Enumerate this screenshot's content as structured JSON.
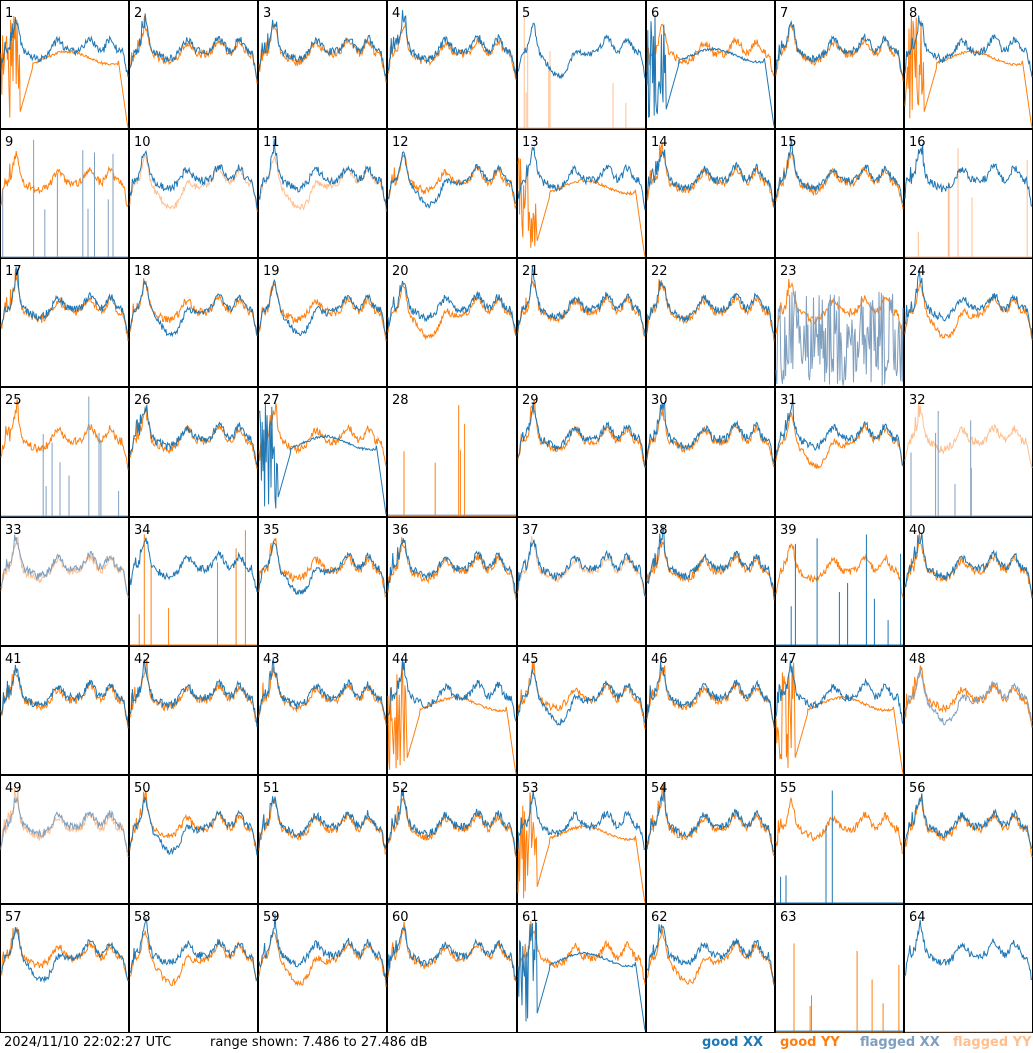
{
  "footer": {
    "timestamp": "2024/11/10 22:02:27 UTC",
    "range": "range shown: 7.486 to 27.486 dB",
    "legend": [
      {
        "label": "good XX",
        "color": "#1f77b4"
      },
      {
        "label": "good YY",
        "color": "#ff7f0e"
      },
      {
        "label": "flagged XX",
        "color": "#7f9fbf"
      },
      {
        "label": "flagged YY",
        "color": "#ffbf8f"
      }
    ]
  },
  "chart_data": {
    "type": "line",
    "grid": {
      "rows": 8,
      "cols": 8
    },
    "ylim": [
      7.486,
      27.486
    ],
    "yunit": "dB",
    "panels": [
      {
        "id": "1",
        "xx": "good",
        "yy": "good",
        "xx_shape": "normal",
        "yy_shape": "rolloff"
      },
      {
        "id": "2",
        "xx": "good",
        "yy": "good",
        "xx_shape": "normal",
        "yy_shape": "normal"
      },
      {
        "id": "3",
        "xx": "good",
        "yy": "good",
        "xx_shape": "normal",
        "yy_shape": "normal"
      },
      {
        "id": "4",
        "xx": "good",
        "yy": "good",
        "xx_shape": "normal",
        "yy_shape": "normal"
      },
      {
        "id": "5",
        "xx": "good",
        "yy": "flagged",
        "xx_shape": "dip",
        "yy_shape": "spikes"
      },
      {
        "id": "6",
        "xx": "good",
        "yy": "good",
        "xx_shape": "rolloff",
        "yy_shape": "normal"
      },
      {
        "id": "7",
        "xx": "good",
        "yy": "good",
        "xx_shape": "normal",
        "yy_shape": "normal"
      },
      {
        "id": "8",
        "xx": "good",
        "yy": "good",
        "xx_shape": "normal",
        "yy_shape": "rolloff"
      },
      {
        "id": "9",
        "xx": "flagged",
        "yy": "good",
        "xx_shape": "spikes",
        "yy_shape": "normal"
      },
      {
        "id": "10",
        "xx": "good",
        "yy": "flagged",
        "xx_shape": "normal",
        "yy_shape": "dip"
      },
      {
        "id": "11",
        "xx": "good",
        "yy": "flagged",
        "xx_shape": "normal",
        "yy_shape": "dip"
      },
      {
        "id": "12",
        "xx": "good",
        "yy": "good",
        "xx_shape": "dip",
        "yy_shape": "normal"
      },
      {
        "id": "13",
        "xx": "good",
        "yy": "good",
        "xx_shape": "normal",
        "yy_shape": "rolloff"
      },
      {
        "id": "14",
        "xx": "good",
        "yy": "good",
        "xx_shape": "normal",
        "yy_shape": "normal"
      },
      {
        "id": "15",
        "xx": "good",
        "yy": "good",
        "xx_shape": "normal",
        "yy_shape": "normal"
      },
      {
        "id": "16",
        "xx": "good",
        "yy": "flagged",
        "xx_shape": "normal",
        "yy_shape": "spikes"
      },
      {
        "id": "17",
        "xx": "good",
        "yy": "good",
        "xx_shape": "normal",
        "yy_shape": "normal"
      },
      {
        "id": "18",
        "xx": "good",
        "yy": "good",
        "xx_shape": "dip",
        "yy_shape": "normal"
      },
      {
        "id": "19",
        "xx": "good",
        "yy": "good",
        "xx_shape": "dip",
        "yy_shape": "normal"
      },
      {
        "id": "20",
        "xx": "good",
        "yy": "good",
        "xx_shape": "normal",
        "yy_shape": "dip"
      },
      {
        "id": "21",
        "xx": "good",
        "yy": "good",
        "xx_shape": "normal",
        "yy_shape": "normal"
      },
      {
        "id": "22",
        "xx": "good",
        "yy": "good",
        "xx_shape": "normal",
        "yy_shape": "normal"
      },
      {
        "id": "23",
        "xx": "flagged",
        "yy": "good",
        "xx_shape": "noise",
        "yy_shape": "normal"
      },
      {
        "id": "24",
        "xx": "good",
        "yy": "good",
        "xx_shape": "normal",
        "yy_shape": "dip"
      },
      {
        "id": "25",
        "xx": "flagged",
        "yy": "good",
        "xx_shape": "spikes",
        "yy_shape": "normal"
      },
      {
        "id": "26",
        "xx": "good",
        "yy": "good",
        "xx_shape": "normal",
        "yy_shape": "normal"
      },
      {
        "id": "27",
        "xx": "good",
        "yy": "good",
        "xx_shape": "rolloff",
        "yy_shape": "normal"
      },
      {
        "id": "28",
        "xx": "flagged",
        "yy": "good",
        "xx_shape": "flat",
        "yy_shape": "spikes"
      },
      {
        "id": "29",
        "xx": "good",
        "yy": "good",
        "xx_shape": "normal",
        "yy_shape": "normal"
      },
      {
        "id": "30",
        "xx": "good",
        "yy": "good",
        "xx_shape": "normal",
        "yy_shape": "normal"
      },
      {
        "id": "31",
        "xx": "good",
        "yy": "good",
        "xx_shape": "normal",
        "yy_shape": "dip"
      },
      {
        "id": "32",
        "xx": "flagged",
        "yy": "flagged",
        "xx_shape": "spikes",
        "yy_shape": "normal"
      },
      {
        "id": "33",
        "xx": "flagged",
        "yy": "flagged",
        "xx_shape": "normal",
        "yy_shape": "normal"
      },
      {
        "id": "34",
        "xx": "good",
        "yy": "good",
        "xx_shape": "normal",
        "yy_shape": "spikes"
      },
      {
        "id": "35",
        "xx": "good",
        "yy": "good",
        "xx_shape": "dip",
        "yy_shape": "normal"
      },
      {
        "id": "36",
        "xx": "good",
        "yy": "good",
        "xx_shape": "normal",
        "yy_shape": "normal"
      },
      {
        "id": "37",
        "xx": "good",
        "yy": "flagged",
        "xx_shape": "normal",
        "yy_shape": "normal"
      },
      {
        "id": "38",
        "xx": "good",
        "yy": "good",
        "xx_shape": "normal",
        "yy_shape": "normal"
      },
      {
        "id": "39",
        "xx": "good",
        "yy": "good",
        "xx_shape": "spikes",
        "yy_shape": "normal"
      },
      {
        "id": "40",
        "xx": "good",
        "yy": "good",
        "xx_shape": "normal",
        "yy_shape": "normal"
      },
      {
        "id": "41",
        "xx": "good",
        "yy": "good",
        "xx_shape": "normal",
        "yy_shape": "normal"
      },
      {
        "id": "42",
        "xx": "good",
        "yy": "good",
        "xx_shape": "normal",
        "yy_shape": "normal"
      },
      {
        "id": "43",
        "xx": "good",
        "yy": "good",
        "xx_shape": "normal",
        "yy_shape": "normal"
      },
      {
        "id": "44",
        "xx": "good",
        "yy": "good",
        "xx_shape": "normal",
        "yy_shape": "rolloff"
      },
      {
        "id": "45",
        "xx": "good",
        "yy": "good",
        "xx_shape": "dip",
        "yy_shape": "normal"
      },
      {
        "id": "46",
        "xx": "good",
        "yy": "good",
        "xx_shape": "normal",
        "yy_shape": "normal"
      },
      {
        "id": "47",
        "xx": "good",
        "yy": "good",
        "xx_shape": "normal",
        "yy_shape": "rolloff"
      },
      {
        "id": "48",
        "xx": "flagged",
        "yy": "good",
        "xx_shape": "dip",
        "yy_shape": "normal"
      },
      {
        "id": "49",
        "xx": "flagged",
        "yy": "flagged",
        "xx_shape": "normal",
        "yy_shape": "normal"
      },
      {
        "id": "50",
        "xx": "good",
        "yy": "good",
        "xx_shape": "dip",
        "yy_shape": "normal"
      },
      {
        "id": "51",
        "xx": "good",
        "yy": "good",
        "xx_shape": "normal",
        "yy_shape": "normal"
      },
      {
        "id": "52",
        "xx": "good",
        "yy": "good",
        "xx_shape": "normal",
        "yy_shape": "normal"
      },
      {
        "id": "53",
        "xx": "good",
        "yy": "good",
        "xx_shape": "normal",
        "yy_shape": "rolloff"
      },
      {
        "id": "54",
        "xx": "good",
        "yy": "good",
        "xx_shape": "normal",
        "yy_shape": "normal"
      },
      {
        "id": "55",
        "xx": "good",
        "yy": "good",
        "xx_shape": "spikes",
        "yy_shape": "normal"
      },
      {
        "id": "56",
        "xx": "good",
        "yy": "good",
        "xx_shape": "normal",
        "yy_shape": "normal"
      },
      {
        "id": "57",
        "xx": "good",
        "yy": "good",
        "xx_shape": "dip",
        "yy_shape": "normal"
      },
      {
        "id": "58",
        "xx": "good",
        "yy": "good",
        "xx_shape": "normal",
        "yy_shape": "dip"
      },
      {
        "id": "59",
        "xx": "good",
        "yy": "good",
        "xx_shape": "normal",
        "yy_shape": "dip"
      },
      {
        "id": "60",
        "xx": "good",
        "yy": "good",
        "xx_shape": "normal",
        "yy_shape": "normal"
      },
      {
        "id": "61",
        "xx": "good",
        "yy": "good",
        "xx_shape": "rolloff",
        "yy_shape": "normal"
      },
      {
        "id": "62",
        "xx": "good",
        "yy": "good",
        "xx_shape": "normal",
        "yy_shape": "dip"
      },
      {
        "id": "63",
        "xx": "good",
        "yy": "good",
        "xx_shape": "flat",
        "yy_shape": "spikes"
      },
      {
        "id": "64",
        "xx": "good",
        "yy": "flagged",
        "xx_shape": "normal",
        "yy_shape": "flat"
      }
    ]
  }
}
